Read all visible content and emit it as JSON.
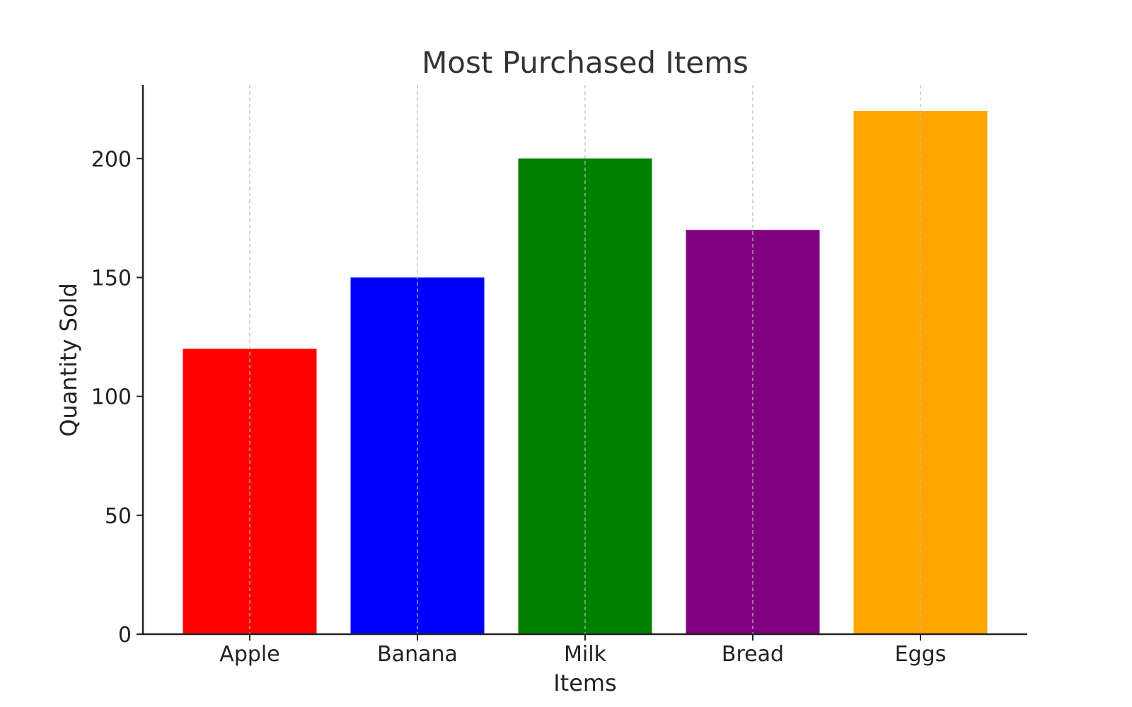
{
  "chart_data": {
    "type": "bar",
    "title": "Most Purchased Items",
    "xlabel": "Items",
    "ylabel": "Quantity Sold",
    "categories": [
      "Apple",
      "Banana",
      "Milk",
      "Bread",
      "Eggs"
    ],
    "values": [
      120,
      150,
      200,
      170,
      220
    ],
    "colors": [
      "#ff0000",
      "#0000ff",
      "#008000",
      "#800080",
      "#ffa500"
    ],
    "yticks": [
      0,
      50,
      100,
      150,
      200
    ],
    "ylim": [
      0,
      231
    ],
    "grid": "x-dashed",
    "legend": "none"
  }
}
